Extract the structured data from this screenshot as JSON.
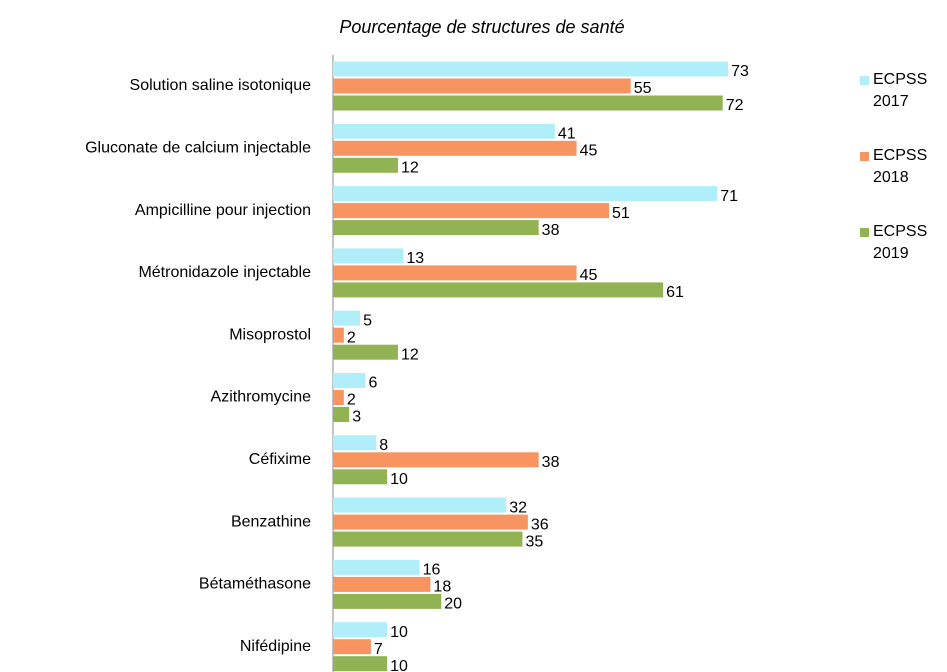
{
  "chart_data": {
    "type": "hbar",
    "title": "Pourcentage de structures de santé",
    "categories": [
      "Solution saline isotonique",
      "Gluconate de calcium injectable",
      "Ampicilline pour injection",
      "Métronidazole injectable",
      "Misoprostol",
      "Azithromycine",
      "Céfixime",
      "Benzathine",
      "Bétaméthasone",
      "Nifédipine"
    ],
    "series": [
      {
        "name": "ECPSS 2017",
        "color": "#b0eff9",
        "values": [
          73,
          41,
          71,
          13,
          5,
          6,
          8,
          32,
          16,
          10
        ]
      },
      {
        "name": "ECPSS 2018",
        "color": "#f79460",
        "values": [
          55,
          45,
          51,
          45,
          2,
          2,
          38,
          36,
          18,
          7
        ]
      },
      {
        "name": "ECPSS 2019",
        "color": "#92b354",
        "values": [
          72,
          12,
          38,
          61,
          12,
          3,
          10,
          35,
          20,
          10
        ]
      }
    ],
    "xlim": [
      0,
      80
    ],
    "legend": "right"
  }
}
